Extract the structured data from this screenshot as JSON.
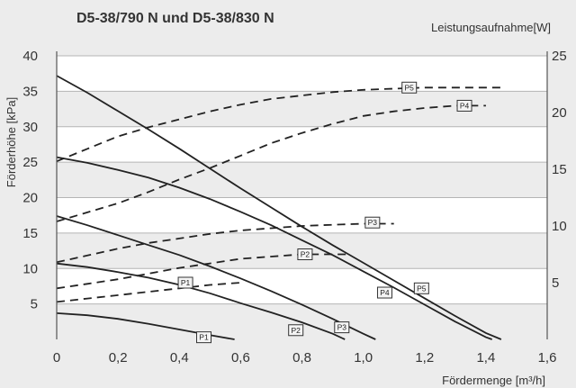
{
  "chart_data": {
    "type": "line",
    "title": "D5-38/790 N und D5-38/830 N",
    "xlabel": "Fördermenge [m³/h]",
    "ylabel": "Förderhöhe [kPa]",
    "y2label": "Leistungsaufnahme[W]",
    "xlim": [
      0,
      1.6
    ],
    "ylim": [
      0,
      40
    ],
    "y2lim": [
      0,
      25
    ],
    "x_ticks": [
      "0",
      "0,2",
      "0,4",
      "0,6",
      "0,8",
      "1,0",
      "1,2",
      "1,4",
      "1,6"
    ],
    "y_ticks": [
      "5",
      "10",
      "15",
      "20",
      "25",
      "30",
      "35",
      "40"
    ],
    "y2_ticks": [
      "5",
      "10",
      "15",
      "20",
      "25"
    ],
    "grid": true,
    "series": [
      {
        "name": "P1",
        "kind": "head",
        "axis": "left",
        "label_at": [
          0.48,
          0.3
        ],
        "x": [
          0,
          0.1,
          0.2,
          0.3,
          0.4,
          0.5,
          0.58
        ],
        "y": [
          3.7,
          3.4,
          2.9,
          2.2,
          1.4,
          0.6,
          0
        ]
      },
      {
        "name": "P2",
        "kind": "head",
        "axis": "left",
        "label_at": [
          0.78,
          1.3
        ],
        "x": [
          0,
          0.1,
          0.2,
          0.3,
          0.4,
          0.5,
          0.6,
          0.7,
          0.8,
          0.9,
          0.94
        ],
        "y": [
          10.7,
          10.2,
          9.5,
          8.7,
          7.7,
          6.5,
          5.1,
          3.8,
          2.4,
          0.8,
          0
        ]
      },
      {
        "name": "P3",
        "kind": "head",
        "axis": "left",
        "label_at": [
          0.93,
          1.7
        ],
        "x": [
          0,
          0.1,
          0.2,
          0.3,
          0.4,
          0.5,
          0.6,
          0.7,
          0.8,
          0.9,
          1.0,
          1.04
        ],
        "y": [
          17.4,
          16.1,
          14.7,
          13.3,
          11.9,
          10.3,
          8.6,
          6.8,
          4.9,
          2.9,
          0.8,
          0
        ]
      },
      {
        "name": "P4",
        "kind": "head",
        "axis": "left",
        "label_at": [
          1.07,
          6.6
        ],
        "x": [
          0,
          0.1,
          0.2,
          0.3,
          0.4,
          0.5,
          0.6,
          0.7,
          0.8,
          0.9,
          1.0,
          1.1,
          1.2,
          1.3,
          1.4,
          1.42
        ],
        "y": [
          25.7,
          24.9,
          23.9,
          22.8,
          21.4,
          19.8,
          18.0,
          16.1,
          14.0,
          11.9,
          9.6,
          7.3,
          4.9,
          2.5,
          0.3,
          0
        ]
      },
      {
        "name": "P5",
        "kind": "head",
        "axis": "left",
        "label_at": [
          1.19,
          7.2
        ],
        "x": [
          0,
          0.1,
          0.2,
          0.3,
          0.4,
          0.5,
          0.6,
          0.7,
          0.8,
          0.9,
          1.0,
          1.1,
          1.2,
          1.3,
          1.4,
          1.45
        ],
        "y": [
          37.2,
          34.8,
          32.2,
          29.6,
          26.9,
          24.1,
          21.3,
          18.6,
          15.9,
          13.3,
          10.8,
          8.3,
          5.8,
          3.3,
          0.9,
          0
        ]
      },
      {
        "name": "P1",
        "kind": "power",
        "axis": "right",
        "label_at": [
          0.42,
          5.0
        ],
        "x": [
          0,
          0.1,
          0.2,
          0.3,
          0.4,
          0.5,
          0.6
        ],
        "y": [
          3.3,
          3.6,
          3.9,
          4.2,
          4.5,
          4.8,
          5.0
        ]
      },
      {
        "name": "P2",
        "kind": "power",
        "axis": "right",
        "label_at": [
          0.81,
          7.5
        ],
        "x": [
          0,
          0.1,
          0.2,
          0.3,
          0.4,
          0.5,
          0.6,
          0.7,
          0.8,
          0.9,
          0.95
        ],
        "y": [
          4.5,
          4.9,
          5.3,
          5.8,
          6.3,
          6.7,
          7.1,
          7.3,
          7.5,
          7.5,
          7.5
        ]
      },
      {
        "name": "P3",
        "kind": "power",
        "axis": "right",
        "label_at": [
          1.03,
          10.3
        ],
        "x": [
          0,
          0.1,
          0.2,
          0.3,
          0.4,
          0.5,
          0.6,
          0.7,
          0.8,
          0.9,
          1.0,
          1.1
        ],
        "y": [
          6.8,
          7.4,
          8.0,
          8.5,
          8.9,
          9.3,
          9.6,
          9.8,
          10.0,
          10.1,
          10.2,
          10.2
        ]
      },
      {
        "name": "P4",
        "kind": "power",
        "axis": "right",
        "label_at": [
          1.33,
          20.6
        ],
        "x": [
          0,
          0.1,
          0.2,
          0.3,
          0.4,
          0.5,
          0.6,
          0.7,
          0.8,
          0.9,
          1.0,
          1.1,
          1.2,
          1.3,
          1.4
        ],
        "y": [
          10.4,
          11.2,
          12.0,
          13.0,
          14.1,
          15.1,
          16.2,
          17.3,
          18.2,
          19.0,
          19.7,
          20.1,
          20.4,
          20.6,
          20.6
        ]
      },
      {
        "name": "P5",
        "kind": "power",
        "axis": "right",
        "label_at": [
          1.15,
          22.2
        ],
        "x": [
          0,
          0.1,
          0.2,
          0.3,
          0.4,
          0.5,
          0.6,
          0.7,
          0.8,
          0.9,
          1.0,
          1.1,
          1.2,
          1.3,
          1.4,
          1.45
        ],
        "y": [
          15.7,
          16.8,
          17.9,
          18.7,
          19.4,
          20.1,
          20.7,
          21.2,
          21.5,
          21.8,
          22.0,
          22.1,
          22.2,
          22.2,
          22.2,
          22.2
        ]
      }
    ]
  }
}
